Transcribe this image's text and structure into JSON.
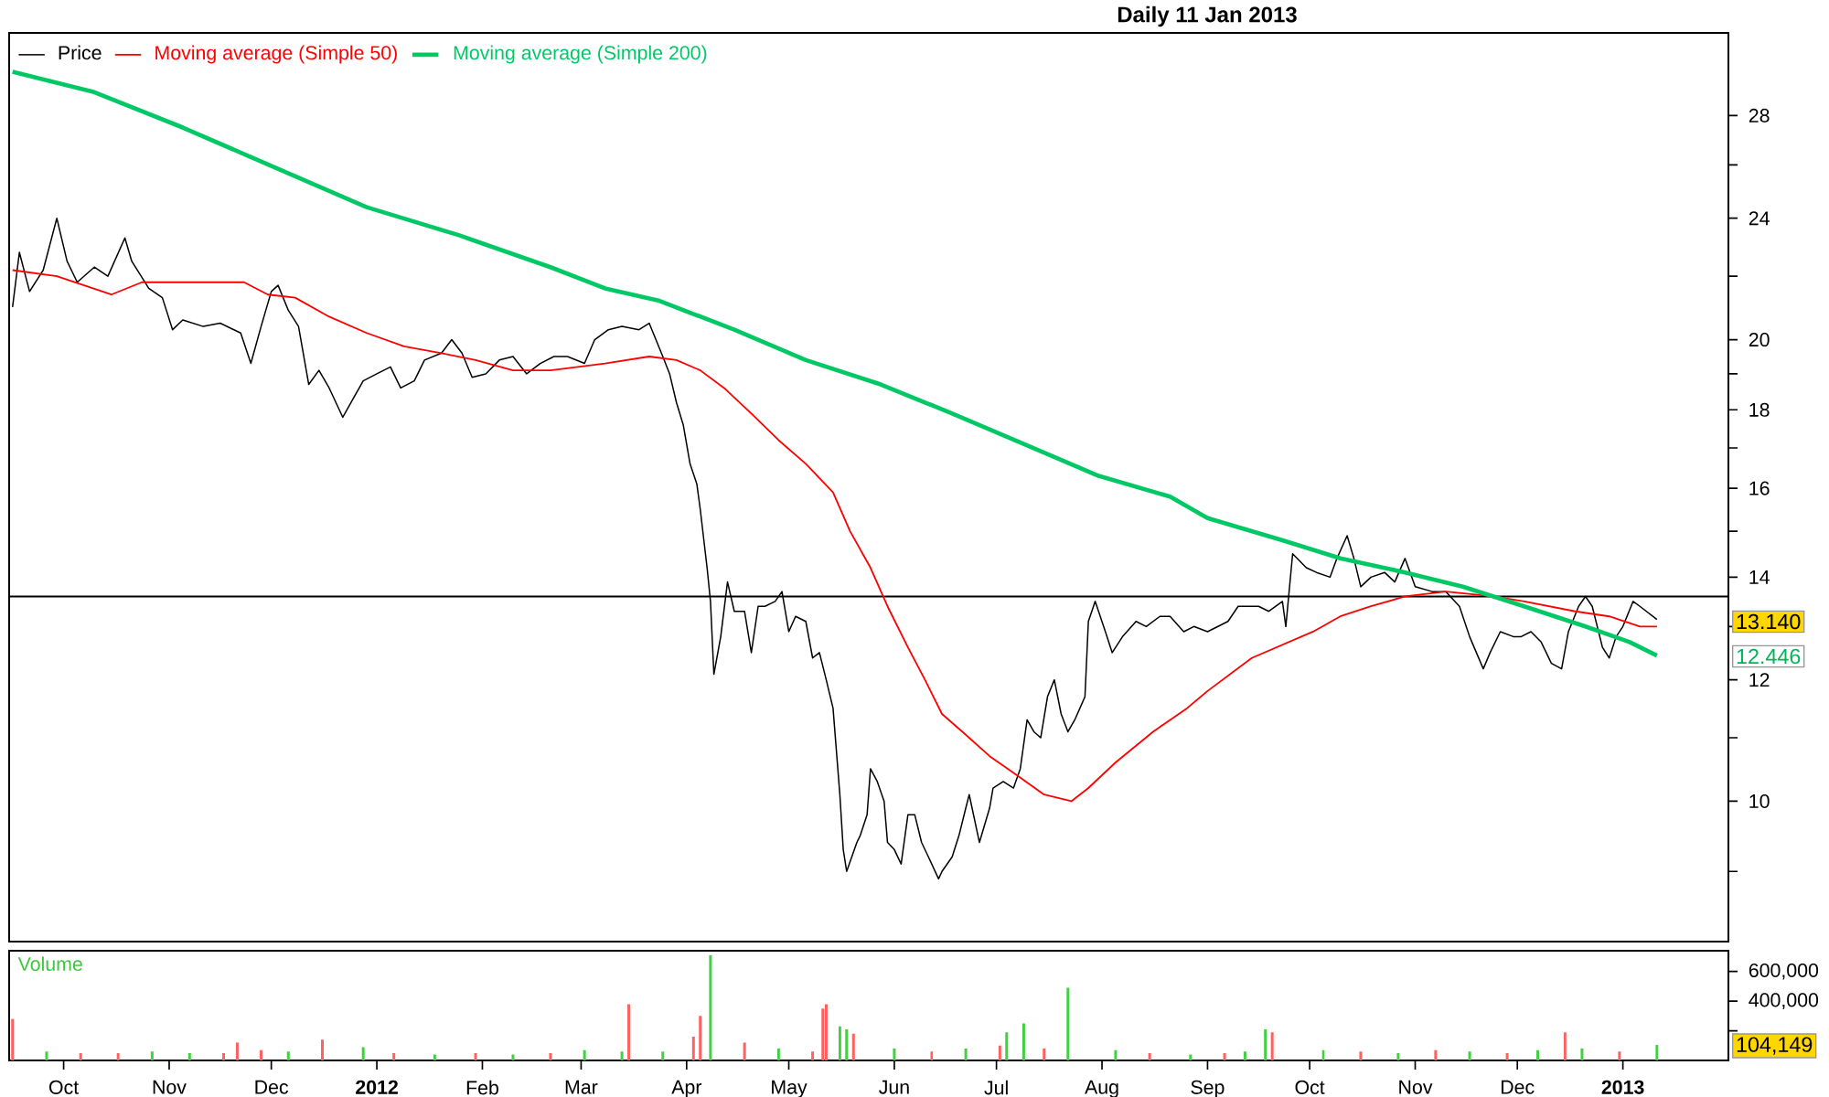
{
  "chart_data": [
    {
      "type": "line",
      "title": "Daily 11 Jan 2013",
      "xlim": [
        "2011-09-15",
        "2013-02-01"
      ],
      "ylim": [
        8.1,
        31.7
      ],
      "log": true,
      "tick_labels": "y",
      "legend": "top left",
      "marker": "none",
      "yticks": [
        {
          "value": 9,
          "label": null
        },
        10,
        {
          "value": 11,
          "label": null
        },
        12,
        {
          "value": 13,
          "label": null
        },
        14,
        {
          "value": 15,
          "label": null
        },
        16,
        {
          "value": 17,
          "label": null
        },
        18,
        {
          "value": 19,
          "label": null
        },
        20,
        {
          "value": 22,
          "label": null
        },
        24,
        {
          "value": 26,
          "label": null
        },
        28
      ],
      "ref_lines": [
        {
          "axis": "y",
          "value": 13.6
        }
      ],
      "annotations": [
        "13.140",
        "12.446"
      ],
      "series": [
        {
          "name": "Price",
          "color": "#000000",
          "x": [
            "2011-09-16",
            "2011-09-18",
            "2011-09-21",
            "2011-09-25",
            "2011-09-29",
            "2011-10-02",
            "2011-10-05",
            "2011-10-10",
            "2011-10-14",
            "2011-10-19",
            "2011-10-21",
            "2011-10-26",
            "2011-10-30",
            "2011-11-02",
            "2011-11-05",
            "2011-11-11",
            "2011-11-16",
            "2011-11-22",
            "2011-11-25",
            "2011-11-28",
            "2011-12-01",
            "2011-12-03",
            "2011-12-06",
            "2011-12-09",
            "2011-12-12",
            "2011-12-15",
            "2011-12-18",
            "2011-12-22",
            "2011-12-25",
            "2011-12-28",
            "2012-01-01",
            "2012-01-05",
            "2012-01-08",
            "2012-01-12",
            "2012-01-15",
            "2012-01-20",
            "2012-01-23",
            "2012-01-26",
            "2012-01-29",
            "2012-02-02",
            "2012-02-06",
            "2012-02-10",
            "2012-02-14",
            "2012-02-18",
            "2012-02-22",
            "2012-02-26",
            "2012-03-02",
            "2012-03-05",
            "2012-03-09",
            "2012-03-13",
            "2012-03-18",
            "2012-03-21",
            "2012-03-25",
            "2012-03-27",
            "2012-03-29",
            "2012-03-31",
            "2012-04-02",
            "2012-04-04",
            "2012-04-05",
            "2012-04-07",
            "2012-04-08",
            "2012-04-09",
            "2012-04-11",
            "2012-04-13",
            "2012-04-15",
            "2012-04-18",
            "2012-04-20",
            "2012-04-22",
            "2012-04-24",
            "2012-04-27",
            "2012-04-29",
            "2012-05-01",
            "2012-05-03",
            "2012-05-06",
            "2012-05-08",
            "2012-05-10",
            "2012-05-12",
            "2012-05-14",
            "2012-05-16",
            "2012-05-17",
            "2012-05-18",
            "2012-05-21",
            "2012-05-22",
            "2012-05-24",
            "2012-05-25",
            "2012-05-27",
            "2012-05-29",
            "2012-05-30",
            "2012-06-01",
            "2012-06-03",
            "2012-06-05",
            "2012-06-07",
            "2012-06-09",
            "2012-06-11",
            "2012-06-14",
            "2012-06-15",
            "2012-06-18",
            "2012-06-20",
            "2012-06-22",
            "2012-06-23",
            "2012-06-26",
            "2012-06-29",
            "2012-06-30",
            "2012-07-03",
            "2012-07-06",
            "2012-07-08",
            "2012-07-10",
            "2012-07-12",
            "2012-07-14",
            "2012-07-16",
            "2012-07-18",
            "2012-07-20",
            "2012-07-22",
            "2012-07-24",
            "2012-07-27",
            "2012-07-28",
            "2012-07-30",
            "2012-08-02",
            "2012-08-04",
            "2012-08-07",
            "2012-08-11",
            "2012-08-14",
            "2012-08-18",
            "2012-08-21",
            "2012-08-25",
            "2012-08-28",
            "2012-09-01",
            "2012-09-07",
            "2012-09-10",
            "2012-09-16",
            "2012-09-19",
            "2012-09-23",
            "2012-09-24",
            "2012-09-26",
            "2012-09-30",
            "2012-10-03",
            "2012-10-07",
            "2012-10-09",
            "2012-10-12",
            "2012-10-14",
            "2012-10-16",
            "2012-10-19",
            "2012-10-23",
            "2012-10-26",
            "2012-10-29",
            "2012-11-01",
            "2012-11-06",
            "2012-11-10",
            "2012-11-14",
            "2012-11-17",
            "2012-11-21",
            "2012-11-23",
            "2012-11-26",
            "2012-11-30",
            "2012-12-02",
            "2012-12-05",
            "2012-12-08",
            "2012-12-11",
            "2012-12-14",
            "2012-12-16",
            "2012-12-19",
            "2012-12-21",
            "2012-12-23",
            "2012-12-26",
            "2012-12-28",
            "2012-12-30",
            "2013-01-01",
            "2013-01-04",
            "2013-01-06",
            "2013-01-11"
          ],
          "values": [
            21.0,
            22.8,
            21.5,
            22.2,
            24.0,
            22.5,
            21.8,
            22.3,
            22.0,
            23.3,
            22.5,
            21.6,
            21.3,
            20.3,
            20.6,
            20.4,
            20.5,
            20.2,
            19.3,
            20.4,
            21.5,
            21.7,
            20.9,
            20.4,
            18.7,
            19.1,
            18.6,
            17.8,
            18.3,
            18.8,
            19.0,
            19.2,
            18.6,
            18.8,
            19.4,
            19.6,
            20.0,
            19.6,
            18.9,
            19.0,
            19.4,
            19.5,
            19.0,
            19.3,
            19.5,
            19.5,
            19.3,
            20.0,
            20.3,
            20.4,
            20.3,
            20.5,
            19.5,
            19.0,
            18.2,
            17.6,
            16.6,
            16.1,
            15.5,
            14.2,
            13.5,
            12.1,
            12.8,
            13.9,
            13.3,
            13.3,
            12.5,
            13.4,
            13.4,
            13.5,
            13.7,
            12.9,
            13.2,
            13.1,
            12.4,
            12.5,
            12.0,
            11.5,
            10.1,
            9.3,
            9.0,
            9.4,
            9.5,
            9.8,
            10.5,
            10.3,
            10.0,
            9.4,
            9.3,
            9.1,
            9.8,
            9.8,
            9.4,
            9.2,
            8.9,
            9.0,
            9.2,
            9.5,
            9.9,
            10.1,
            9.4,
            9.9,
            10.2,
            10.3,
            10.2,
            10.5,
            11.3,
            11.1,
            11.0,
            11.7,
            12.0,
            11.4,
            11.1,
            11.3,
            11.7,
            13.1,
            13.5,
            12.9,
            12.5,
            12.8,
            13.1,
            13.0,
            13.2,
            13.2,
            12.9,
            13.0,
            12.9,
            13.1,
            13.4,
            13.4,
            13.3,
            13.5,
            13.0,
            14.5,
            14.2,
            14.1,
            14.0,
            14.4,
            14.9,
            14.4,
            13.8,
            14.0,
            14.1,
            13.9,
            14.4,
            13.8,
            13.7,
            13.7,
            13.4,
            12.8,
            12.2,
            12.5,
            12.9,
            12.8,
            12.8,
            12.9,
            12.7,
            12.3,
            12.2,
            12.9,
            13.4,
            13.6,
            13.4,
            12.6,
            12.4,
            12.8,
            13.0,
            13.5,
            13.4,
            13.14
          ]
        },
        {
          "name": "Moving average (Simple 50)",
          "color": "#ff0000",
          "x": [
            "2011-09-16",
            "2011-09-29",
            "2011-10-15",
            "2011-10-24",
            "2011-11-23",
            "2011-11-30",
            "2011-12-08",
            "2011-12-18",
            "2011-12-29",
            "2012-01-09",
            "2012-01-20",
            "2012-01-30",
            "2012-02-10",
            "2012-02-21",
            "2012-03-08",
            "2012-03-21",
            "2012-03-29",
            "2012-04-05",
            "2012-04-12",
            "2012-04-20",
            "2012-04-28",
            "2012-05-06",
            "2012-05-14",
            "2012-05-19",
            "2012-05-25",
            "2012-05-30",
            "2012-06-05",
            "2012-06-10",
            "2012-06-15",
            "2012-06-21",
            "2012-06-29",
            "2012-07-07",
            "2012-07-15",
            "2012-07-23",
            "2012-07-28",
            "2012-08-05",
            "2012-08-16",
            "2012-08-26",
            "2012-09-01",
            "2012-09-14",
            "2012-10-02",
            "2012-10-10",
            "2012-10-19",
            "2012-10-29",
            "2012-11-10",
            "2012-11-24",
            "2012-12-03",
            "2012-12-18",
            "2012-12-28",
            "2013-01-06",
            "2013-01-11"
          ],
          "values": [
            22.2,
            22.0,
            21.4,
            21.8,
            21.8,
            21.4,
            21.3,
            20.7,
            20.2,
            19.8,
            19.6,
            19.4,
            19.1,
            19.1,
            19.3,
            19.5,
            19.4,
            19.1,
            18.6,
            17.9,
            17.2,
            16.6,
            15.9,
            15.0,
            14.2,
            13.4,
            12.6,
            12.0,
            11.4,
            11.1,
            10.7,
            10.4,
            10.1,
            10.0,
            10.2,
            10.6,
            11.1,
            11.5,
            11.8,
            12.4,
            12.9,
            13.2,
            13.4,
            13.6,
            13.7,
            13.6,
            13.5,
            13.3,
            13.2,
            13.0,
            13.0
          ]
        },
        {
          "name": "Moving average (Simple 200)",
          "color": "#00c864",
          "x": [
            "2011-09-16",
            "2011-10-10",
            "2011-11-05",
            "2011-12-02",
            "2011-12-29",
            "2012-01-25",
            "2012-02-21",
            "2012-03-08",
            "2012-03-24",
            "2012-04-15",
            "2012-05-06",
            "2012-05-28",
            "2012-06-18",
            "2012-07-09",
            "2012-07-31",
            "2012-08-21",
            "2012-09-01",
            "2012-09-23",
            "2012-10-10",
            "2012-10-29",
            "2012-11-15",
            "2012-12-03",
            "2012-12-21",
            "2013-01-03",
            "2013-01-11"
          ],
          "values": [
            29.9,
            29.0,
            27.5,
            25.9,
            24.4,
            23.4,
            22.3,
            21.6,
            21.2,
            20.3,
            19.4,
            18.7,
            17.9,
            17.1,
            16.3,
            15.8,
            15.3,
            14.8,
            14.4,
            14.1,
            13.8,
            13.4,
            13.0,
            12.7,
            12.446
          ]
        }
      ]
    },
    {
      "type": "bar",
      "ylabel": "Volume",
      "xlim": [
        "2011-09-15",
        "2013-02-01"
      ],
      "ylim": [
        0,
        740000
      ],
      "yticks": [
        {
          "value": 200000,
          "label": null
        },
        {
          "value": 400000,
          "label": "400,000"
        },
        {
          "value": 600000,
          "label": "600,000"
        }
      ],
      "xticks": [
        {
          "value": "2011-10-01",
          "label": "Oct"
        },
        {
          "value": "2011-11-01",
          "label": "Nov"
        },
        {
          "value": "2011-12-01",
          "label": "Dec"
        },
        {
          "value": "2012-01-01",
          "label": "**2012**"
        },
        {
          "value": "2012-02-01",
          "label": "Feb"
        },
        {
          "value": "2012-03-01",
          "label": "Mar"
        },
        {
          "value": "2012-04-01",
          "label": "Apr"
        },
        {
          "value": "2012-05-01",
          "label": "May"
        },
        {
          "value": "2012-06-01",
          "label": "Jun"
        },
        {
          "value": "2012-07-01",
          "label": "Jul"
        },
        {
          "value": "2012-08-01",
          "label": "Aug"
        },
        {
          "value": "2012-09-01",
          "label": "Sep"
        },
        {
          "value": "2012-10-01",
          "label": "Oct"
        },
        {
          "value": "2012-11-01",
          "label": "Nov"
        },
        {
          "value": "2012-12-01",
          "label": "Dec"
        },
        {
          "value": "2013-01-01",
          "label": "**2013**"
        }
      ],
      "annotations": [
        "104,149"
      ],
      "x": [
        "2011-09-16",
        "2011-09-26",
        "2011-10-06",
        "2011-10-17",
        "2011-10-27",
        "2011-11-07",
        "2011-11-17",
        "2011-11-21",
        "2011-11-28",
        "2011-12-06",
        "2011-12-16",
        "2011-12-28",
        "2012-01-06",
        "2012-01-18",
        "2012-01-30",
        "2012-02-10",
        "2012-02-21",
        "2012-03-02",
        "2012-03-13",
        "2012-03-15",
        "2012-03-25",
        "2012-04-03",
        "2012-04-05",
        "2012-04-08",
        "2012-04-18",
        "2012-04-28",
        "2012-05-08",
        "2012-05-11",
        "2012-05-12",
        "2012-05-16",
        "2012-05-18",
        "2012-05-20",
        "2012-06-01",
        "2012-06-12",
        "2012-06-22",
        "2012-07-02",
        "2012-07-04",
        "2012-07-09",
        "2012-07-15",
        "2012-07-22",
        "2012-08-05",
        "2012-08-15",
        "2012-08-27",
        "2012-09-06",
        "2012-09-12",
        "2012-09-18",
        "2012-09-20",
        "2012-10-05",
        "2012-10-16",
        "2012-10-27",
        "2012-11-07",
        "2012-11-17",
        "2012-11-28",
        "2012-12-07",
        "2012-12-15",
        "2012-12-20",
        "2012-12-31",
        "2013-01-11"
      ],
      "values": [
        280000,
        60000,
        50000,
        50000,
        60000,
        50000,
        50000,
        120000,
        70000,
        60000,
        140000,
        90000,
        50000,
        40000,
        50000,
        40000,
        50000,
        70000,
        60000,
        380000,
        60000,
        160000,
        300000,
        710000,
        120000,
        80000,
        60000,
        350000,
        380000,
        230000,
        210000,
        180000,
        80000,
        60000,
        80000,
        100000,
        190000,
        250000,
        80000,
        490000,
        70000,
        50000,
        40000,
        50000,
        60000,
        210000,
        190000,
        70000,
        60000,
        50000,
        70000,
        60000,
        50000,
        70000,
        190000,
        80000,
        60000,
        104149
      ],
      "colors": [
        "#ff6060",
        "#40d040",
        "#ff6060",
        "#ff6060",
        "#40d040",
        "#40d040",
        "#ff6060",
        "#ff6060",
        "#ff6060",
        "#40d040",
        "#ff6060",
        "#40d040",
        "#ff6060",
        "#40d040",
        "#ff6060",
        "#40d040",
        "#ff6060",
        "#40d040",
        "#40d040",
        "#ff6060",
        "#40d040",
        "#ff6060",
        "#ff6060",
        "#40d040",
        "#ff6060",
        "#40d040",
        "#ff6060",
        "#ff6060",
        "#ff6060",
        "#40d040",
        "#40d040",
        "#ff6060",
        "#40d040",
        "#ff6060",
        "#40d040",
        "#ff6060",
        "#40d040",
        "#40d040",
        "#ff6060",
        "#40d040",
        "#40d040",
        "#ff6060",
        "#40d040",
        "#ff6060",
        "#40d040",
        "#40d040",
        "#ff6060",
        "#40d040",
        "#ff6060",
        "#40d040",
        "#ff6060",
        "#40d040",
        "#ff6060",
        "#40d040",
        "#ff6060",
        "#40d040",
        "#ff6060",
        "#40d040"
      ]
    }
  ]
}
